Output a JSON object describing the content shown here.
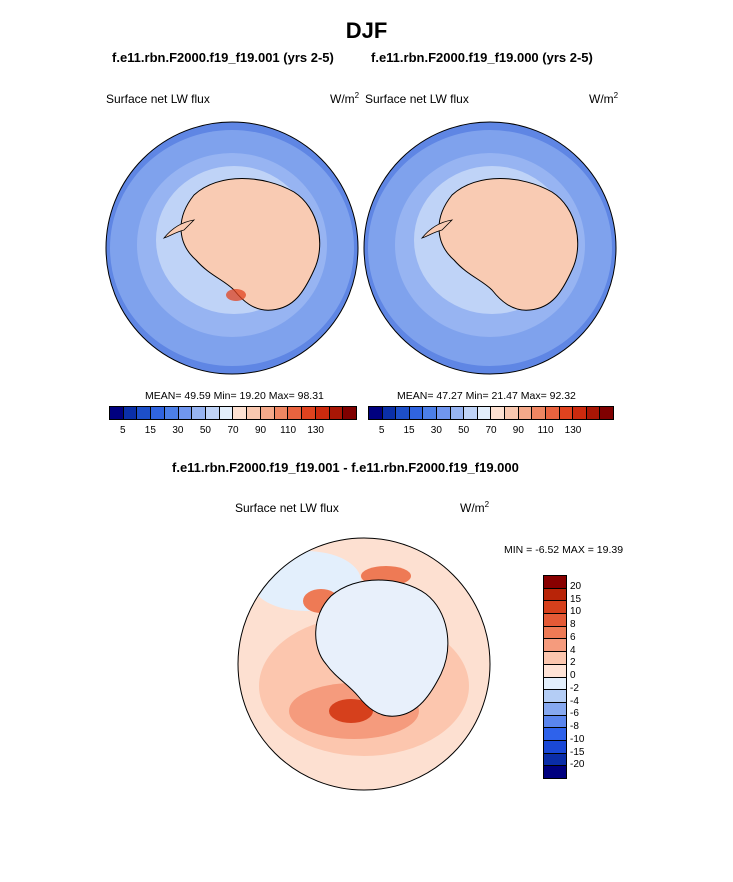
{
  "figure": {
    "title": "DJF",
    "diff_title": "f.e11.rbn.F2000.f19_f19.001 - f.e11.rbn.F2000.f19_f19.000"
  },
  "colors": {
    "abs_palette": [
      "#00007f",
      "#0a2fa8",
      "#1d4fc9",
      "#3064e0",
      "#4c7fe8",
      "#7096ef",
      "#97b4f2",
      "#bfd3f7",
      "#e3eefb",
      "#fde1d2",
      "#f9c8b0",
      "#f4a98a",
      "#ef8662",
      "#e9633f",
      "#e0431f",
      "#cc2a0e",
      "#a81605",
      "#7f0000"
    ],
    "diff_palette": [
      "#00007f",
      "#0a2da8",
      "#1a48d6",
      "#2e62eb",
      "#5a85ee",
      "#86a8f0",
      "#b4cdf5",
      "#e3effc",
      "#ffe3d6",
      "#fcc6ae",
      "#f59b7d",
      "#ee7a55",
      "#e45a36",
      "#d6401c",
      "#b82408",
      "#880000"
    ],
    "ocean_abs": "#7fa2ed",
    "ocean_abs_outer": "#5f86e4",
    "land_abs": "#f9cbb3",
    "ocean_diff": "#fde0d1",
    "land_diff": "#e8f0fb"
  },
  "chart_data": [
    {
      "type": "heatmap",
      "projection": "south polar stereographic",
      "case": "f.e11.rbn.F2000.f19_f19.001 (yrs 2-5)",
      "variable": "Surface net LW flux",
      "units": "W/m",
      "units_exp": "2",
      "stats": {
        "mean": 49.59,
        "min": 19.2,
        "max": 98.31
      },
      "stats_text": "MEAN=  49.59  Min=  19.20  Max=  98.31",
      "levels": [
        5,
        10,
        15,
        20,
        30,
        40,
        50,
        60,
        70,
        80,
        90,
        100,
        110,
        120,
        130,
        140,
        150
      ],
      "tick_labels": [
        "5",
        "15",
        "30",
        "50",
        "70",
        "90",
        "110",
        "130"
      ]
    },
    {
      "type": "heatmap",
      "projection": "south polar stereographic",
      "case": "f.e11.rbn.F2000.f19_f19.000 (yrs 2-5)",
      "variable": "Surface net LW flux",
      "units": "W/m",
      "units_exp": "2",
      "stats": {
        "mean": 47.27,
        "min": 21.47,
        "max": 92.32
      },
      "stats_text": "MEAN=  47.27  Min=  21.47  Max=  92.32",
      "levels": [
        5,
        10,
        15,
        20,
        30,
        40,
        50,
        60,
        70,
        80,
        90,
        100,
        110,
        120,
        130,
        140,
        150
      ],
      "tick_labels": [
        "5",
        "15",
        "30",
        "50",
        "70",
        "90",
        "110",
        "130"
      ]
    },
    {
      "type": "heatmap",
      "projection": "south polar stereographic",
      "variable": "Surface net LW flux",
      "units": "W/m",
      "units_exp": "2",
      "stats": {
        "min": -6.52,
        "max": 19.39
      },
      "stats_text": "MIN =  -6.52 MAX =  19.39",
      "levels": [
        -20,
        -15,
        -10,
        -8,
        -6,
        -4,
        -2,
        0,
        2,
        4,
        6,
        8,
        10,
        15,
        20
      ],
      "tick_labels": [
        "20",
        "15",
        "10",
        "8",
        "6",
        "4",
        "2",
        "0",
        "-2",
        "-4",
        "-6",
        "-8",
        "-10",
        "-15",
        "-20"
      ]
    }
  ]
}
